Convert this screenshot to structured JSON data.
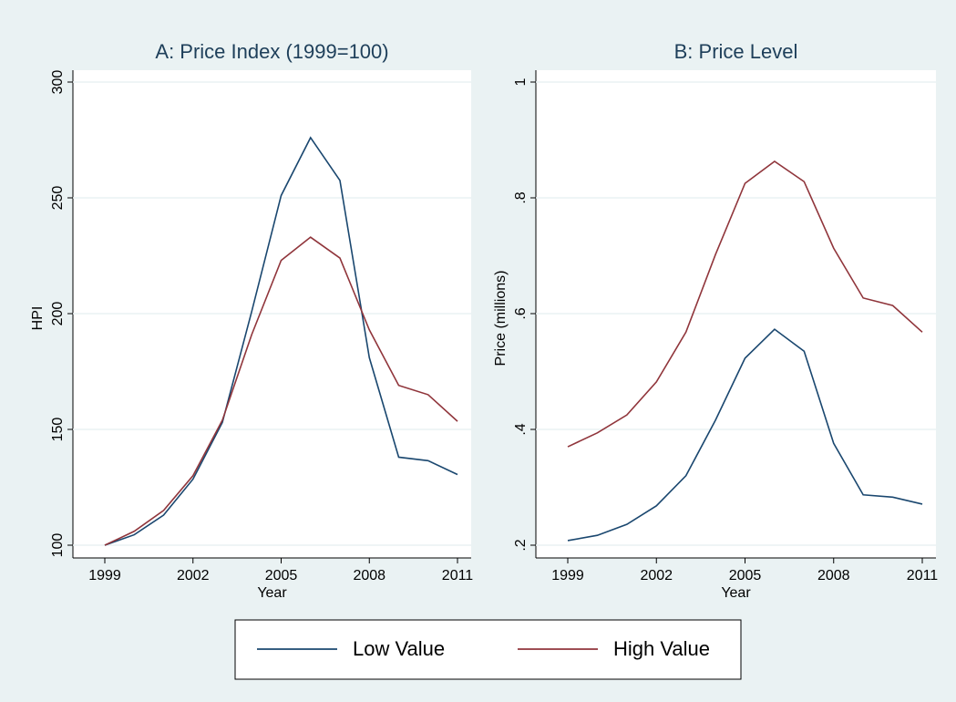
{
  "chart_data": [
    {
      "type": "line",
      "title": "A: Price Index (1999=100)",
      "x_label": "Year",
      "y_label": "HPI",
      "x": [
        1999,
        2000,
        2001,
        2002,
        2003,
        2004,
        2005,
        2006,
        2007,
        2008,
        2009,
        2010,
        2011
      ],
      "series": [
        {
          "name": "Low Value",
          "color": "#1a476f",
          "values": [
            100,
            104.5,
            113,
            128.5,
            153,
            201,
            251,
            276,
            257.5,
            181,
            138,
            136.5,
            130.5
          ]
        },
        {
          "name": "High Value",
          "color": "#90353b",
          "values": [
            100,
            106,
            115,
            130,
            154,
            191,
            223,
            233,
            224,
            193,
            169,
            165,
            153.5
          ]
        }
      ],
      "xlim": [
        1999,
        2011
      ],
      "xticks": [
        1999,
        2002,
        2005,
        2008,
        2011
      ],
      "ylim": [
        100,
        300
      ],
      "yticks": [
        100,
        150,
        200,
        250,
        300
      ],
      "grid": true
    },
    {
      "type": "line",
      "title": "B: Price Level",
      "x_label": "Year",
      "y_label": "Price (millions)",
      "x": [
        1999,
        2000,
        2001,
        2002,
        2003,
        2004,
        2005,
        2006,
        2007,
        2008,
        2009,
        2010,
        2011
      ],
      "series": [
        {
          "color": "#1a476f",
          "values": [
            0.208,
            0.217,
            0.236,
            0.268,
            0.32,
            0.416,
            0.523,
            0.573,
            0.535,
            0.376,
            0.287,
            0.283,
            0.271
          ]
        },
        {
          "color": "#90353b",
          "values": [
            0.37,
            0.394,
            0.425,
            0.482,
            0.568,
            0.702,
            0.825,
            0.863,
            0.828,
            0.713,
            0.627,
            0.614,
            0.568
          ]
        }
      ],
      "xlim": [
        1999,
        2011
      ],
      "xticks": [
        1999,
        2002,
        2005,
        2008,
        2011
      ],
      "ylim": [
        0.2,
        1
      ],
      "yticks": [
        {
          "value": 0.2,
          "label": ".2"
        },
        {
          "value": 0.4,
          "label": ".4"
        },
        {
          "value": 0.6,
          "label": ".6"
        },
        {
          "value": 0.8,
          "label": ".8"
        },
        1
      ],
      "grid": true
    }
  ]
}
